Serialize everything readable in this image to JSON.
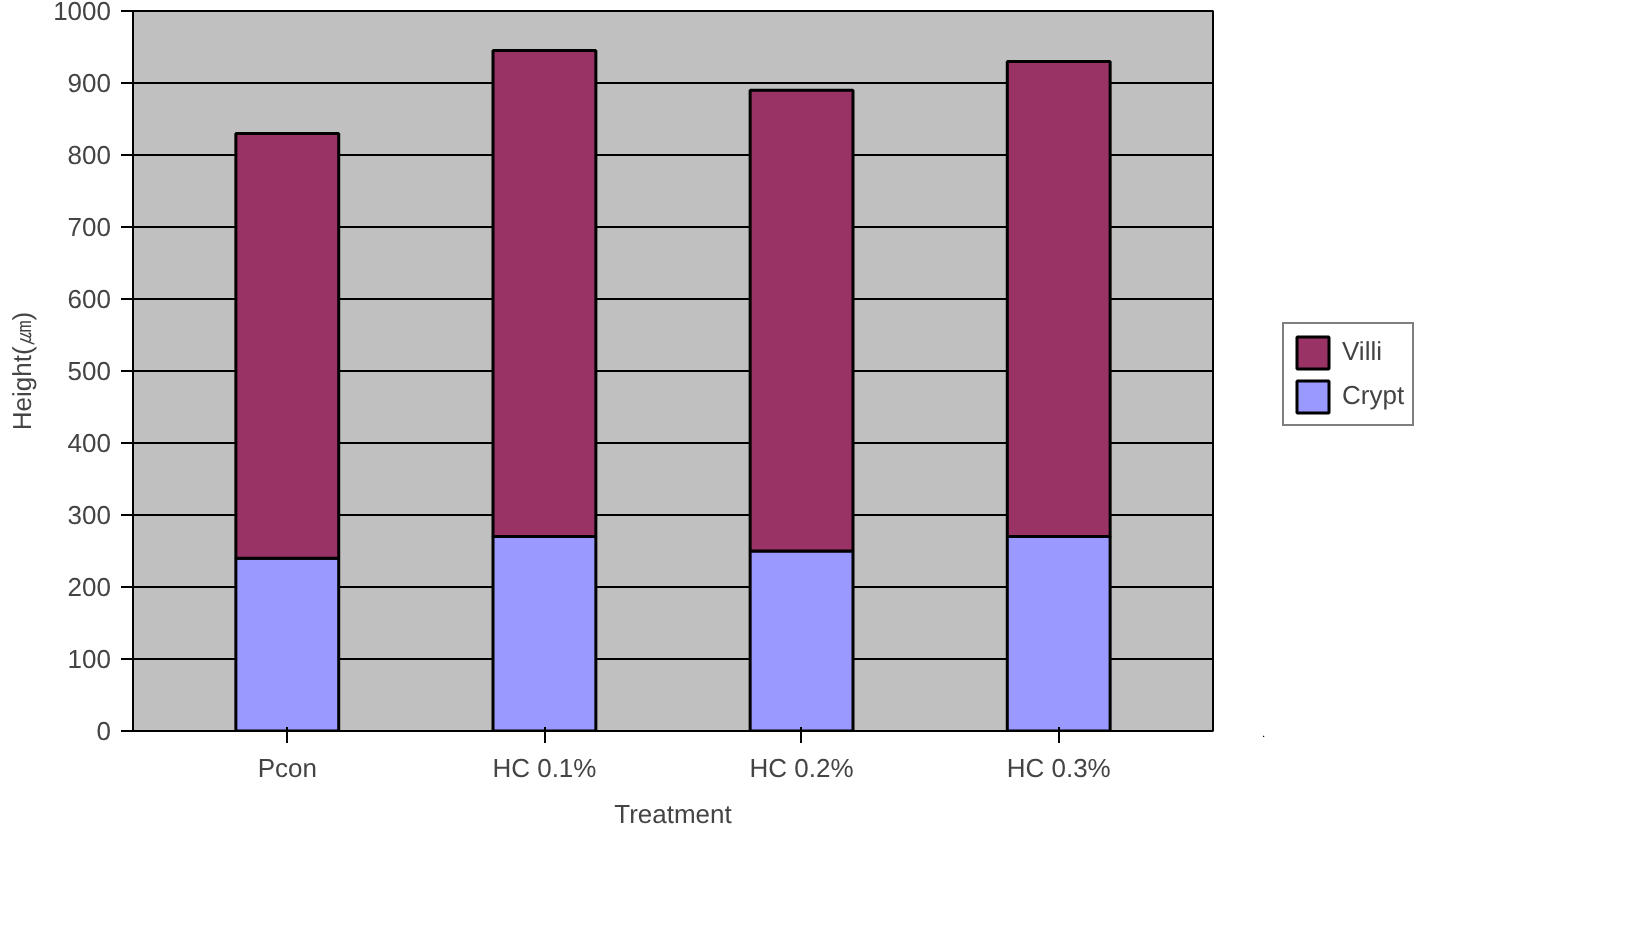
{
  "chart_data": {
    "type": "bar",
    "stacked": true,
    "xlabel": "Treatment",
    "ylabel": "Height(㎛)",
    "categories": [
      "Pcon",
      "HC 0.1%",
      "HC 0.2%",
      "HC 0.3%"
    ],
    "series": [
      {
        "name": "Crypt",
        "color": "#9999ff",
        "values": [
          240,
          270,
          250,
          270
        ]
      },
      {
        "name": "Villi",
        "color": "#993366",
        "values": [
          590,
          675,
          640,
          660
        ]
      }
    ],
    "ylim": [
      0,
      1000
    ],
    "yticks": [
      0,
      100,
      200,
      300,
      400,
      500,
      600,
      700,
      800,
      900,
      1000
    ],
    "grid": "y",
    "legend": "right"
  }
}
